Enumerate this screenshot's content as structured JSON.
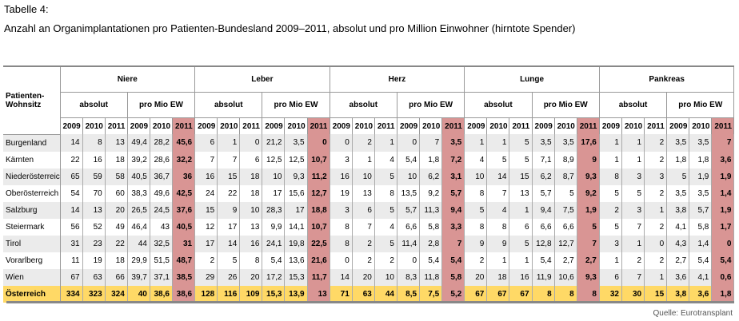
{
  "title": "Tabelle 4:",
  "subtitle": "Anzahl an Organimplantationen pro Patienten-Bundesland 2009–2011, absolut und pro Million Einwohner (hirntote Spender)",
  "header": {
    "row_label": "Patienten-Wohnsitz",
    "organs": [
      "Niere",
      "Leber",
      "Herz",
      "Lunge",
      "Pankreas"
    ],
    "measures": [
      "absolut",
      "pro Mio EW"
    ],
    "years": [
      "2009",
      "2010",
      "2011"
    ]
  },
  "rows": [
    {
      "name": "Burgenland",
      "values": [
        "14",
        "8",
        "13",
        "49,4",
        "28,2",
        "45,6",
        "6",
        "1",
        "0",
        "21,2",
        "3,5",
        "0",
        "0",
        "2",
        "1",
        "0",
        "7",
        "3,5",
        "1",
        "1",
        "5",
        "3,5",
        "3,5",
        "17,6",
        "1",
        "1",
        "2",
        "3,5",
        "3,5",
        "7"
      ]
    },
    {
      "name": "Kärnten",
      "values": [
        "22",
        "16",
        "18",
        "39,2",
        "28,6",
        "32,2",
        "7",
        "7",
        "6",
        "12,5",
        "12,5",
        "10,7",
        "3",
        "1",
        "4",
        "5,4",
        "1,8",
        "7,2",
        "4",
        "5",
        "5",
        "7,1",
        "8,9",
        "9",
        "1",
        "1",
        "2",
        "1,8",
        "1,8",
        "3,6"
      ]
    },
    {
      "name": "Niederösterreich",
      "values": [
        "65",
        "59",
        "58",
        "40,5",
        "36,7",
        "36",
        "16",
        "15",
        "18",
        "10",
        "9,3",
        "11,2",
        "16",
        "10",
        "5",
        "10",
        "6,2",
        "3,1",
        "10",
        "14",
        "15",
        "6,2",
        "8,7",
        "9,3",
        "8",
        "3",
        "3",
        "5",
        "1,9",
        "1,9"
      ]
    },
    {
      "name": "Oberösterreich",
      "values": [
        "54",
        "70",
        "60",
        "38,3",
        "49,6",
        "42,5",
        "24",
        "22",
        "18",
        "17",
        "15,6",
        "12,7",
        "19",
        "13",
        "8",
        "13,5",
        "9,2",
        "5,7",
        "8",
        "7",
        "13",
        "5,7",
        "5",
        "9,2",
        "5",
        "5",
        "2",
        "3,5",
        "3,5",
        "1,4"
      ]
    },
    {
      "name": "Salzburg",
      "values": [
        "14",
        "13",
        "20",
        "26,5",
        "24,5",
        "37,6",
        "15",
        "9",
        "10",
        "28,3",
        "17",
        "18,8",
        "3",
        "6",
        "5",
        "5,7",
        "11,3",
        "9,4",
        "5",
        "4",
        "1",
        "9,4",
        "7,5",
        "1,9",
        "2",
        "3",
        "1",
        "3,8",
        "5,7",
        "1,9"
      ]
    },
    {
      "name": "Steiermark",
      "values": [
        "56",
        "52",
        "49",
        "46,4",
        "43",
        "40,5",
        "12",
        "17",
        "13",
        "9,9",
        "14,1",
        "10,7",
        "8",
        "7",
        "4",
        "6,6",
        "5,8",
        "3,3",
        "8",
        "8",
        "6",
        "6,6",
        "6,6",
        "5",
        "5",
        "7",
        "2",
        "4,1",
        "5,8",
        "1,7"
      ]
    },
    {
      "name": "Tirol",
      "values": [
        "31",
        "23",
        "22",
        "44",
        "32,5",
        "31",
        "17",
        "14",
        "16",
        "24,1",
        "19,8",
        "22,5",
        "8",
        "2",
        "5",
        "11,4",
        "2,8",
        "7",
        "9",
        "9",
        "5",
        "12,8",
        "12,7",
        "7",
        "3",
        "1",
        "0",
        "4,3",
        "1,4",
        "0"
      ]
    },
    {
      "name": "Vorarlberg",
      "values": [
        "11",
        "19",
        "18",
        "29,9",
        "51,5",
        "48,7",
        "2",
        "5",
        "8",
        "5,4",
        "13,6",
        "21,6",
        "0",
        "2",
        "2",
        "0",
        "5,4",
        "5,4",
        "2",
        "1",
        "1",
        "5,4",
        "2,7",
        "2,7",
        "1",
        "2",
        "2",
        "2,7",
        "5,4",
        "5,4"
      ]
    },
    {
      "name": "Wien",
      "values": [
        "67",
        "63",
        "66",
        "39,7",
        "37,1",
        "38,5",
        "29",
        "26",
        "20",
        "17,2",
        "15,3",
        "11,7",
        "14",
        "20",
        "10",
        "8,3",
        "11,8",
        "5,8",
        "20",
        "18",
        "16",
        "11,9",
        "10,6",
        "9,3",
        "6",
        "7",
        "1",
        "3,6",
        "4,1",
        "0,6"
      ]
    },
    {
      "name": "Österreich",
      "total": true,
      "values": [
        "334",
        "323",
        "324",
        "40",
        "38,6",
        "38,6",
        "128",
        "116",
        "109",
        "15,3",
        "13,9",
        "13",
        "71",
        "63",
        "44",
        "8,5",
        "7,5",
        "5,2",
        "67",
        "67",
        "67",
        "8",
        "8",
        "8",
        "32",
        "30",
        "15",
        "3,8",
        "3,6",
        "1,8"
      ]
    }
  ],
  "colors": {
    "highlight": "#d99594",
    "total": "#ffd966",
    "stripe": "#ebebeb"
  },
  "source": "Quelle: Eurotransplant"
}
